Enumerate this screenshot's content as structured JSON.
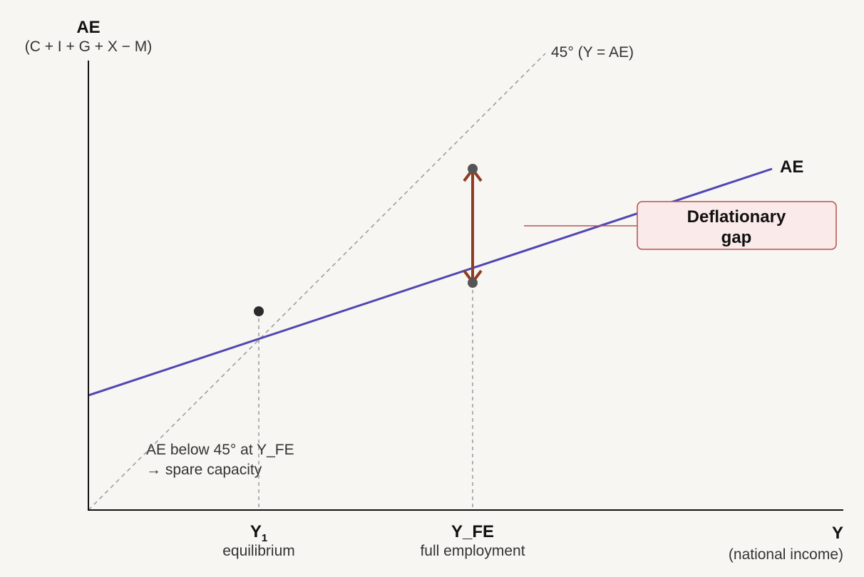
{
  "y_axis": {
    "title": "AE",
    "subtitle": "(C + I + G + X − M)"
  },
  "x_axis": {
    "title": "Y",
    "subtitle": "(national income)"
  },
  "lines": {
    "reference": "45° (Y = AE)",
    "ae": "AE"
  },
  "gap_label": [
    "Deflationary",
    "gap"
  ],
  "markers": [
    {
      "label": "Y",
      "subscript": "1",
      "caption": "equilibrium"
    },
    {
      "label": "Y_FE",
      "caption": "full employment"
    }
  ],
  "annotation": [
    "AE below 45° at Y_FE",
    "→ spare capacity"
  ]
}
